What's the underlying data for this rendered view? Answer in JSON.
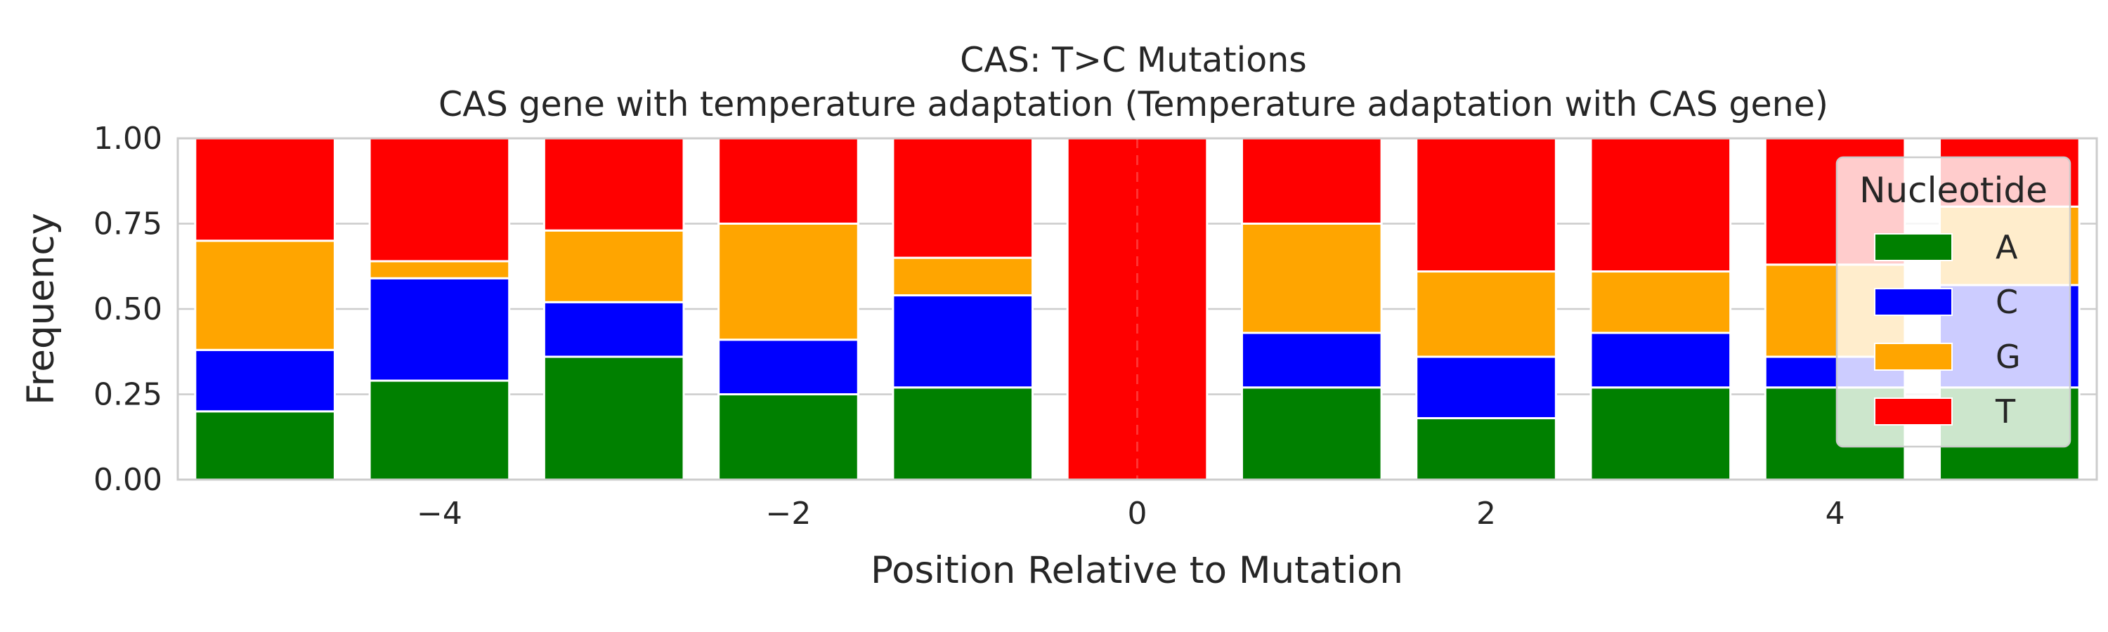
{
  "chart_data": {
    "type": "bar",
    "stacked": true,
    "title": "CAS: T>C Mutations",
    "subtitle": "CAS gene with temperature adaptation (Temperature adaptation with CAS gene)",
    "xlabel": "Position Relative to Mutation",
    "ylabel": "Frequency",
    "xlim": [
      -5.5,
      5.5
    ],
    "ylim": [
      0,
      1
    ],
    "x": [
      -5,
      -4,
      -3,
      -2,
      -1,
      0,
      1,
      2,
      3,
      4,
      5
    ],
    "x_ticks": [
      -4,
      -2,
      0,
      2,
      4
    ],
    "x_tick_labels": [
      "−4",
      "−2",
      "0",
      "2",
      "4"
    ],
    "y_ticks": [
      0,
      0.25,
      0.5,
      0.75,
      1.0
    ],
    "y_tick_labels": [
      "0.00",
      "0.25",
      "0.50",
      "0.75",
      "1.00"
    ],
    "grid": true,
    "reference_line_x": 0,
    "legend": {
      "title": "Nucleotide",
      "position": "right"
    },
    "series": [
      {
        "name": "A",
        "color": "#008000",
        "values": [
          0.2,
          0.29,
          0.36,
          0.25,
          0.27,
          0,
          0.27,
          0.18,
          0.27,
          0.27,
          0.27
        ]
      },
      {
        "name": "C",
        "color": "#0000ff",
        "values": [
          0.18,
          0.3,
          0.16,
          0.16,
          0.27,
          0,
          0.16,
          0.18,
          0.16,
          0.09,
          0.3
        ]
      },
      {
        "name": "G",
        "color": "#ffa500",
        "values": [
          0.32,
          0.05,
          0.21,
          0.34,
          0.11,
          0,
          0.32,
          0.25,
          0.18,
          0.27,
          0.23
        ]
      },
      {
        "name": "T",
        "color": "#ff0000",
        "values": [
          0.3,
          0.36,
          0.27,
          0.25,
          0.35,
          1.0,
          0.25,
          0.39,
          0.39,
          0.37,
          0.2
        ]
      }
    ]
  }
}
